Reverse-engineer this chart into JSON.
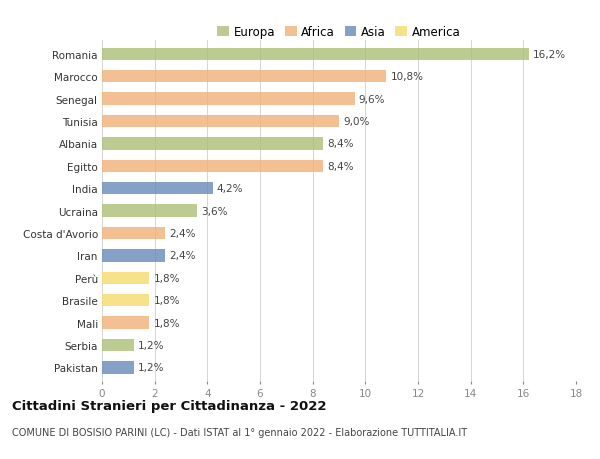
{
  "countries": [
    "Romania",
    "Marocco",
    "Senegal",
    "Tunisia",
    "Albania",
    "Egitto",
    "India",
    "Ucraina",
    "Costa d'Avorio",
    "Iran",
    "Perù",
    "Brasile",
    "Mali",
    "Serbia",
    "Pakistan"
  ],
  "values": [
    16.2,
    10.8,
    9.6,
    9.0,
    8.4,
    8.4,
    4.2,
    3.6,
    2.4,
    2.4,
    1.8,
    1.8,
    1.8,
    1.2,
    1.2
  ],
  "labels": [
    "16,2%",
    "10,8%",
    "9,6%",
    "9,0%",
    "8,4%",
    "8,4%",
    "4,2%",
    "3,6%",
    "2,4%",
    "2,4%",
    "1,8%",
    "1,8%",
    "1,8%",
    "1,2%",
    "1,2%"
  ],
  "categories": [
    "Europa",
    "Africa",
    "Africa",
    "Africa",
    "Europa",
    "Africa",
    "Asia",
    "Europa",
    "Africa",
    "Asia",
    "America",
    "America",
    "Africa",
    "Europa",
    "Asia"
  ],
  "colors": {
    "Europa": "#adc178",
    "Africa": "#f0b27a",
    "Asia": "#6b8cba",
    "America": "#f7dc6f"
  },
  "xlim": [
    0,
    18
  ],
  "xticks": [
    0,
    2,
    4,
    6,
    8,
    10,
    12,
    14,
    16,
    18
  ],
  "title": "Cittadini Stranieri per Cittadinanza - 2022",
  "subtitle": "COMUNE DI BOSISIO PARINI (LC) - Dati ISTAT al 1° gennaio 2022 - Elaborazione TUTTITALIA.IT",
  "background_color": "#ffffff",
  "grid_color": "#d5d5d5",
  "bar_height": 0.55,
  "label_fontsize": 7.5,
  "ytick_fontsize": 7.5,
  "xtick_fontsize": 7.5,
  "title_fontsize": 9.5,
  "subtitle_fontsize": 7.0,
  "legend_fontsize": 8.5
}
